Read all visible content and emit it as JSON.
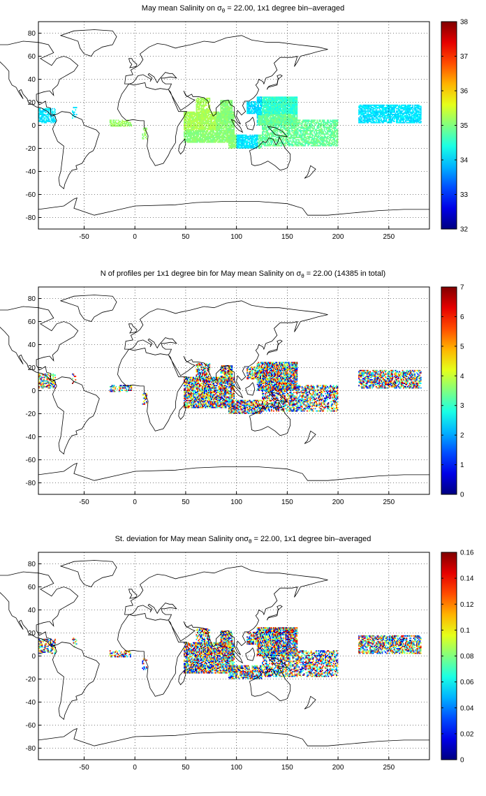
{
  "figure": {
    "panels": [
      {
        "id": "mean",
        "title_prefix": "May mean Salinity on ",
        "title_symbol": "σ",
        "title_subscript": "θ",
        "title_suffix": " = 22.00, 1x1 degree bin–averaged",
        "colorbar": {
          "min": 32,
          "max": 38,
          "ticks": [
            "38",
            "37",
            "36",
            "35",
            "34",
            "33",
            "32"
          ]
        }
      },
      {
        "id": "count",
        "title_prefix": "N of profiles per 1x1 degree bin for May mean Salinity on ",
        "title_symbol": "σ",
        "title_subscript": "θ",
        "title_suffix": " = 22.00 (14385 in total)",
        "colorbar": {
          "min": 0,
          "max": 7,
          "ticks": [
            "7",
            "6",
            "5",
            "4",
            "3",
            "2",
            "1",
            "0"
          ]
        }
      },
      {
        "id": "std",
        "title_prefix": "St. deviation for May mean Salinity on",
        "title_symbol": "σ",
        "title_subscript": "θ",
        "title_suffix": " = 22.00, 1x1 degree bin–averaged",
        "colorbar": {
          "min": 0,
          "max": 0.16,
          "ticks": [
            "0.16",
            "0.14",
            "0.12",
            "0.1",
            "0.08",
            "0.06",
            "0.04",
            "0.02",
            "0"
          ]
        }
      }
    ],
    "x_ticks": [
      "-50",
      "0",
      "50",
      "100",
      "150",
      "200",
      "250"
    ],
    "y_ticks": [
      "80",
      "60",
      "40",
      "20",
      "0",
      "-20",
      "-40",
      "-60",
      "-80"
    ],
    "lon_range": [
      -95,
      290
    ],
    "lat_range": [
      -90,
      90
    ],
    "colormap": "jet",
    "grid": true
  }
}
